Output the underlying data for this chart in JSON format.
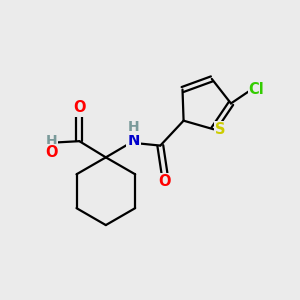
{
  "background_color": "#ebebeb",
  "bond_color": "#000000",
  "bond_width": 1.6,
  "figsize": [
    3.0,
    3.0
  ],
  "dpi": 100,
  "colors": {
    "O": "#ff0000",
    "N": "#0000cc",
    "S": "#cccc00",
    "Cl": "#33cc00",
    "H_gray": "#7a9a9a",
    "C": "#000000"
  },
  "font_size": 10.5,
  "xlim": [
    0,
    10
  ],
  "ylim": [
    0,
    10
  ]
}
